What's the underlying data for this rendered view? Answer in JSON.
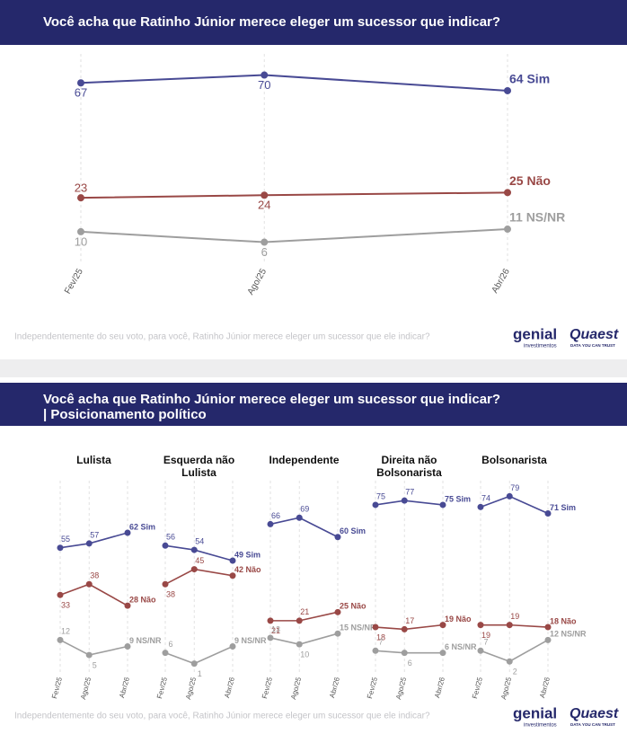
{
  "chart_data": [
    {
      "type": "line",
      "title": "Você acha que Ratinho Júnior merece eleger um sucessor que indicar?",
      "categories": [
        "Fev/25",
        "Ago/25",
        "Abr/26"
      ],
      "ylim": [
        0,
        75
      ],
      "grid": true,
      "series": [
        {
          "color": "#484a94",
          "values": [
            67,
            70,
            64
          ],
          "value_labels": [
            "67",
            "70",
            "64 Sim"
          ]
        },
        {
          "color": "#994846",
          "values": [
            23,
            24,
            25
          ],
          "value_labels": [
            "23",
            "24",
            "25 Não"
          ]
        },
        {
          "color": "#9e9e9e",
          "values": [
            10,
            6,
            11
          ],
          "value_labels": [
            "10",
            "6",
            "11 NS/NR"
          ]
        }
      ],
      "footer": {
        "note": "Independentemente do seu voto, para você, Ratinho Júnior merece eleger um sucessor que ele indicar?",
        "brand_1": "genial",
        "brand_1_sub": "investimentos",
        "brand_2": "Quaest",
        "brand_2_sub": "DATA YOU CAN TRUST"
      }
    },
    {
      "type": "line",
      "title": "Você acha que Ratinho Júnior merece eleger um sucessor que indicar? | Posicionamento político",
      "categories": [
        "Fev/25",
        "Ago/25",
        "Abr/26"
      ],
      "ylim": [
        0,
        80
      ],
      "grid": true,
      "panels": [
        {
          "title": "Lulista",
          "series": [
            {
              "color": "#484a94",
              "values": [
                55,
                57,
                62
              ],
              "value_labels": [
                "55",
                "57",
                "62 Sim"
              ]
            },
            {
              "color": "#994846",
              "values": [
                33,
                38,
                28
              ],
              "value_labels": [
                "33",
                "38",
                "28 Não"
              ]
            },
            {
              "color": "#9e9e9e",
              "values": [
                12,
                5,
                9
              ],
              "value_labels": [
                "12",
                "5",
                "9 NS/NR"
              ]
            }
          ]
        },
        {
          "title": "Esquerda não Lulista",
          "series": [
            {
              "color": "#484a94",
              "values": [
                56,
                54,
                49
              ],
              "value_labels": [
                "56",
                "54",
                "49 Sim"
              ]
            },
            {
              "color": "#994846",
              "values": [
                38,
                45,
                42
              ],
              "value_labels": [
                "38",
                "45",
                "42 Não"
              ]
            },
            {
              "color": "#9e9e9e",
              "values": [
                6,
                1,
                9
              ],
              "value_labels": [
                "6",
                "1",
                "9 NS/NR"
              ]
            }
          ]
        },
        {
          "title": "Independente",
          "series": [
            {
              "color": "#484a94",
              "values": [
                66,
                69,
                60
              ],
              "value_labels": [
                "66",
                "69",
                "60 Sim"
              ]
            },
            {
              "color": "#994846",
              "values": [
                21,
                21,
                25
              ],
              "value_labels": [
                "21",
                "21",
                "25 Não"
              ]
            },
            {
              "color": "#9e9e9e",
              "values": [
                13,
                10,
                15
              ],
              "value_labels": [
                "13",
                "10",
                "15 NS/NR"
              ]
            }
          ]
        },
        {
          "title": "Direita não Bolsonarista",
          "series": [
            {
              "color": "#484a94",
              "values": [
                75,
                77,
                75
              ],
              "value_labels": [
                "75",
                "77",
                "75 Sim"
              ]
            },
            {
              "color": "#994846",
              "values": [
                18,
                17,
                19
              ],
              "value_labels": [
                "18",
                "17",
                "19 Não"
              ]
            },
            {
              "color": "#9e9e9e",
              "values": [
                7,
                6,
                6
              ],
              "value_labels": [
                "7",
                "6",
                "6 NS/NR"
              ]
            }
          ]
        },
        {
          "title": "Bolsonarista",
          "series": [
            {
              "color": "#484a94",
              "values": [
                74,
                79,
                71
              ],
              "value_labels": [
                "74",
                "79",
                "71 Sim"
              ]
            },
            {
              "color": "#994846",
              "values": [
                19,
                19,
                18
              ],
              "value_labels": [
                "19",
                "19",
                "18 Não"
              ]
            },
            {
              "color": "#9e9e9e",
              "values": [
                7,
                2,
                12
              ],
              "value_labels": [
                "7",
                "2",
                "12 NS/NR"
              ]
            }
          ]
        }
      ],
      "footer": {
        "note": "Independentemente do seu voto, para você, Ratinho Júnior merece eleger um sucessor que ele indicar?",
        "brand_1": "genial",
        "brand_1_sub": "investimentos",
        "brand_2": "Quaest",
        "brand_2_sub": "DATA YOU CAN TRUST"
      }
    }
  ]
}
